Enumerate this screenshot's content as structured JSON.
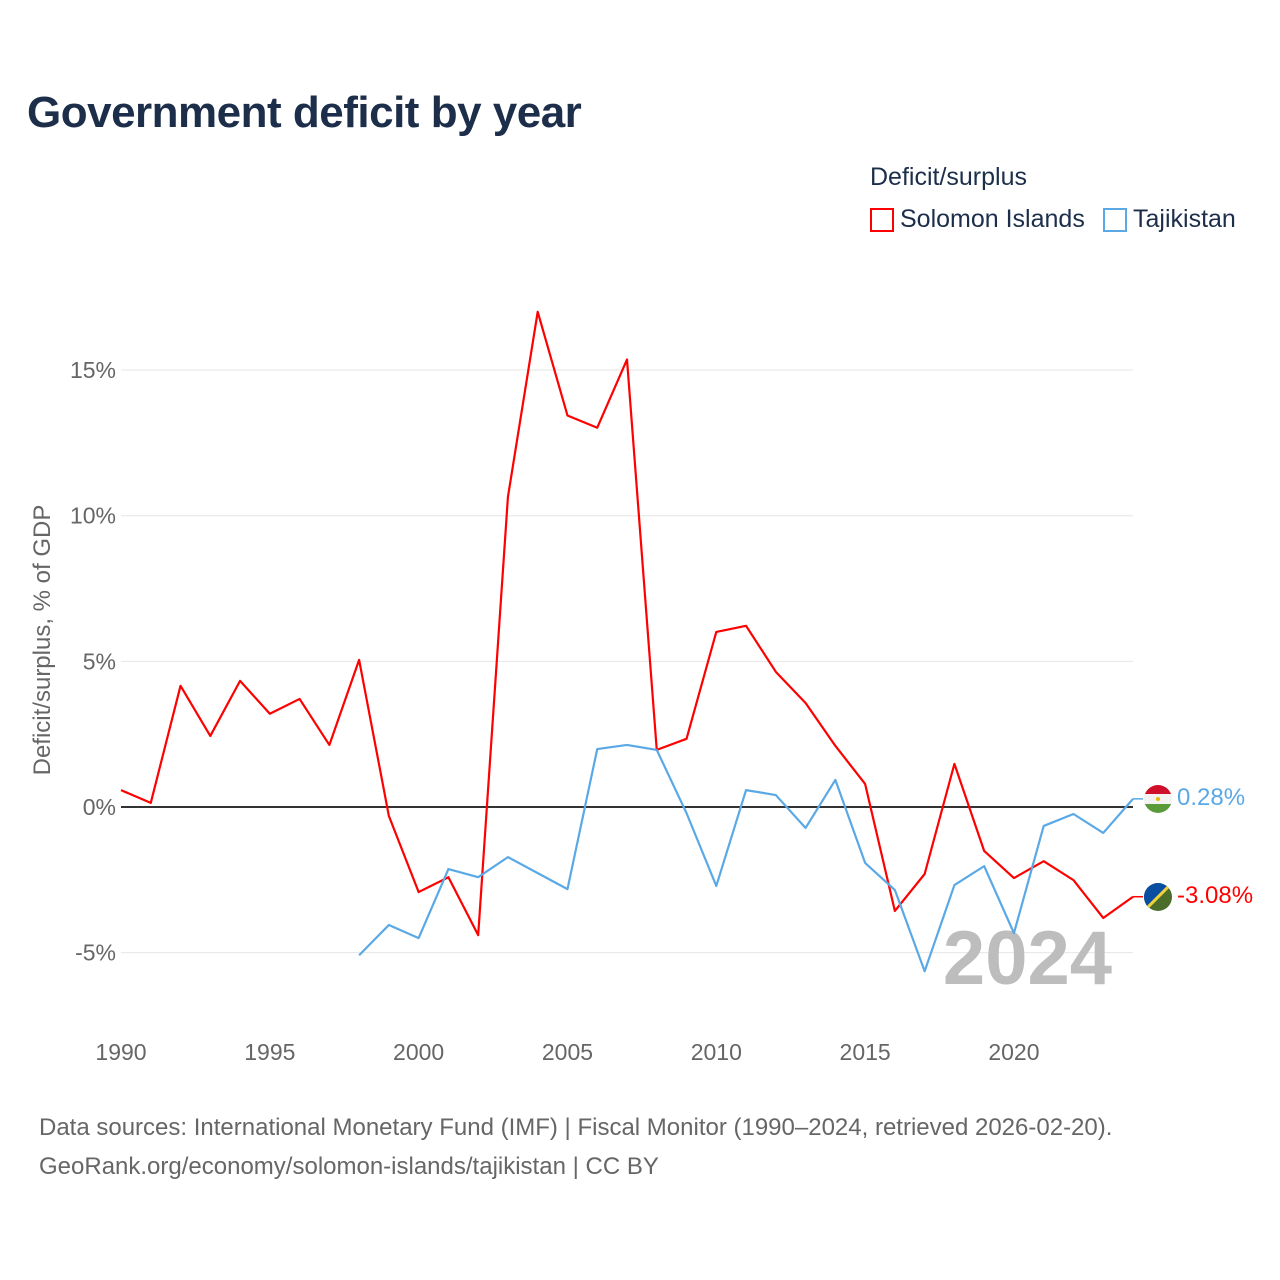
{
  "title": "Government deficit by year",
  "legend": {
    "title": "Deficit/surplus",
    "items": [
      "Solomon Islands",
      "Tajikistan"
    ]
  },
  "footer": {
    "line1": "Data sources: International Monetary Fund (IMF) | Fiscal Monitor (1990–2024, retrieved 2026-02-20).",
    "line2": "GeoRank.org/economy/solomon-islands/tajikistan | CC BY"
  },
  "chart_data": {
    "type": "line",
    "title": "Government deficit by year",
    "ylabel": "Deficit/surplus, % of GDP",
    "xlabel": "",
    "xlim": [
      1990,
      2024
    ],
    "ylim": [
      -7.5,
      17.5
    ],
    "x_ticks": [
      1990,
      1995,
      2000,
      2005,
      2010,
      2015,
      2020
    ],
    "y_ticks": [
      -5,
      0,
      5,
      10,
      15
    ],
    "y_tick_labels": [
      "-5%",
      "0%",
      "5%",
      "10%",
      "15%"
    ],
    "year_watermark": "2024",
    "series": [
      {
        "name": "Solomon Islands",
        "color": "#ff0000",
        "end_label": "-3.08%",
        "flag": "solomon-islands",
        "x": [
          1990,
          1991,
          1992,
          1993,
          1994,
          1995,
          1996,
          1997,
          1998,
          1999,
          2000,
          2001,
          2002,
          2003,
          2004,
          2005,
          2006,
          2007,
          2008,
          2009,
          2010,
          2011,
          2012,
          2013,
          2014,
          2015,
          2016,
          2017,
          2018,
          2019,
          2020,
          2021,
          2022,
          2023,
          2024
        ],
        "values": [
          0.58,
          0.14,
          4.16,
          2.44,
          4.33,
          3.2,
          3.71,
          2.13,
          5.05,
          -0.31,
          -2.92,
          -2.41,
          -4.4,
          10.65,
          17.0,
          13.44,
          13.02,
          15.36,
          1.96,
          2.34,
          6.01,
          6.22,
          4.64,
          3.57,
          2.1,
          0.79,
          -3.57,
          -2.3,
          1.48,
          -1.51,
          -2.44,
          -1.86,
          -2.51,
          -3.81,
          -3.08
        ]
      },
      {
        "name": "Tajikistan",
        "color": "#5aa9e6",
        "end_label": "0.28%",
        "flag": "tajikistan",
        "x": [
          1998,
          1999,
          2000,
          2001,
          2002,
          2003,
          2004,
          2005,
          2006,
          2007,
          2008,
          2009,
          2010,
          2011,
          2012,
          2013,
          2014,
          2015,
          2016,
          2017,
          2018,
          2019,
          2020,
          2021,
          2022,
          2023,
          2024
        ],
        "values": [
          -5.09,
          -4.05,
          -4.5,
          -2.13,
          -2.41,
          -1.72,
          -2.27,
          -2.82,
          1.99,
          2.13,
          1.96,
          -0.21,
          -2.71,
          0.58,
          0.41,
          -0.72,
          0.93,
          -1.92,
          -2.85,
          -5.64,
          -2.68,
          -2.03,
          -4.33,
          -0.65,
          -0.24,
          -0.89,
          0.28
        ]
      }
    ]
  }
}
